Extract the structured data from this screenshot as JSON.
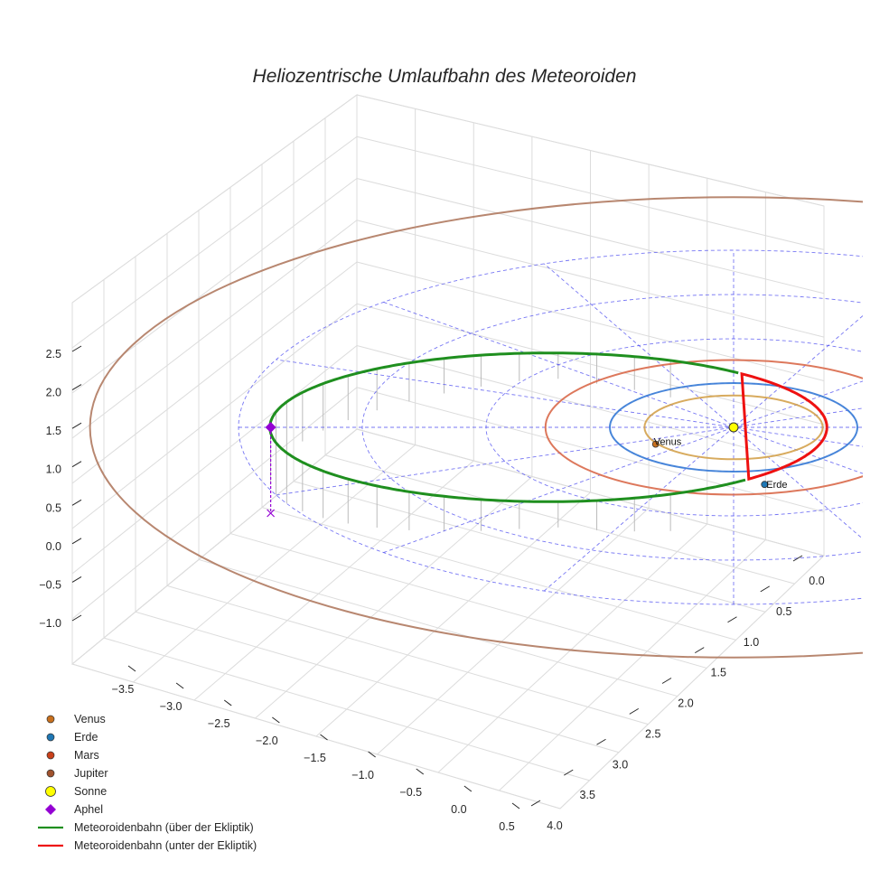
{
  "chart_data": {
    "type": "3d-orbit",
    "title": "Heliozentrische Umlaufbahn des Meteoroiden",
    "axes": {
      "x": {
        "ticks": [
          "−3.5",
          "−3.0",
          "−2.5",
          "−2.0",
          "−1.5",
          "−1.0",
          "−0.5",
          "0.0",
          "0.5"
        ],
        "range": [
          -3.7,
          0.6
        ]
      },
      "y": {
        "ticks": [
          "0.0",
          "0.5",
          "1.0",
          "1.5",
          "2.0",
          "2.5",
          "3.0",
          "3.5",
          "4.0"
        ],
        "range": [
          -0.2,
          4.2
        ]
      },
      "z": {
        "ticks": [
          "−1.0",
          "−0.5",
          "0.0",
          "0.5",
          "1.0",
          "1.5",
          "2.0",
          "2.5"
        ],
        "range": [
          -1.2,
          2.8
        ]
      }
    },
    "bodies": [
      {
        "name": "Venus",
        "label": "Venus",
        "color": "#c8701e",
        "orbit_color": "#d4a24c",
        "orbit_radius_au": 0.72
      },
      {
        "name": "Erde",
        "label": "Erde",
        "color": "#1f77b4",
        "orbit_color": "#3a7dd6",
        "orbit_radius_au": 1.0
      },
      {
        "name": "Mars",
        "label": "",
        "color": "#c9401a",
        "orbit_color": "#d9694a",
        "orbit_radius_au": 1.52
      },
      {
        "name": "Jupiter",
        "label": "",
        "color": "#a0522d",
        "orbit_color": "#b07a60",
        "orbit_radius_au": 5.2
      }
    ],
    "sun": {
      "name": "Sonne",
      "color": "#ffff00"
    },
    "aphel": {
      "name": "Aphel",
      "color": "#9400d3",
      "distance_au": 3.74
    },
    "meteoroid": {
      "semi_major_axis_au": 2.25,
      "eccentricity": 0.665,
      "above_label": "Meteoroidenbahn (über der Ekliptik)",
      "above_color": "#1f8f1f",
      "below_label": "Meteoroidenbahn (unter der Ekliptik)",
      "below_color": "#ee1111"
    },
    "ecliptic_grid": {
      "ring_radii_au": [
        1,
        2,
        3,
        4
      ],
      "spoke_count": 8,
      "color": "#4a4af0"
    },
    "legend": [
      {
        "label": "Venus",
        "marker": "dot",
        "color": "#c8701e"
      },
      {
        "label": "Erde",
        "marker": "dot",
        "color": "#1f77b4"
      },
      {
        "label": "Mars",
        "marker": "dot",
        "color": "#c9401a"
      },
      {
        "label": "Jupiter",
        "marker": "dot",
        "color": "#a0522d"
      },
      {
        "label": "Sonne",
        "marker": "bigdot",
        "color": "#ffff00"
      },
      {
        "label": "Aphel",
        "marker": "diamond",
        "color": "#9400d3"
      },
      {
        "label": "Meteoroidenbahn (über der Ekliptik)",
        "marker": "line",
        "color": "#1f8f1f"
      },
      {
        "label": "Meteoroidenbahn (unter der Ekliptik)",
        "marker": "line",
        "color": "#ee1111"
      }
    ]
  }
}
